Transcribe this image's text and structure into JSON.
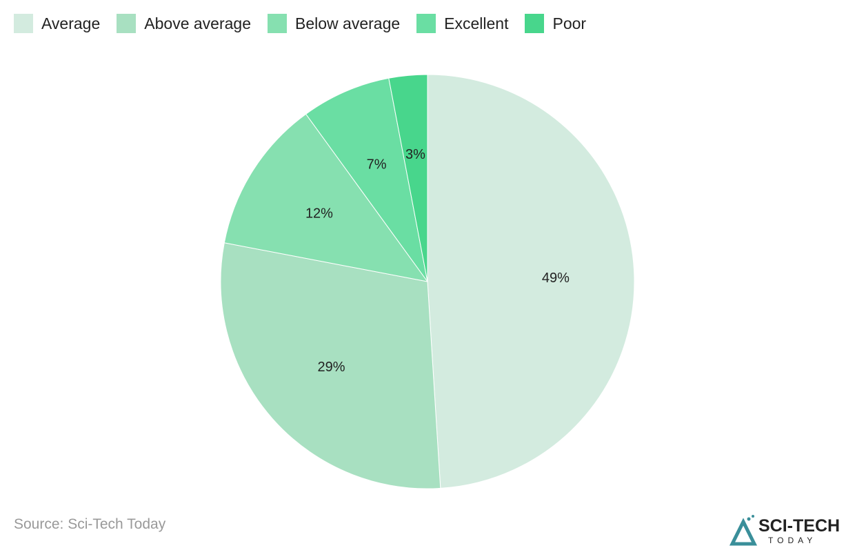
{
  "chart_data": {
    "type": "pie",
    "categories": [
      "Average",
      "Above average",
      "Below average",
      "Excellent",
      "Poor"
    ],
    "values": [
      49,
      29,
      12,
      7,
      3
    ],
    "labels": [
      "49%",
      "29%",
      "12%",
      "7%",
      "3%"
    ],
    "colors": [
      "#d3ebdf",
      "#a8e0c1",
      "#86e0b0",
      "#6adea3",
      "#48d68c"
    ],
    "legend_position": "top-left",
    "start_angle": "top, clockwise"
  },
  "source": "Source: Sci-Tech Today",
  "logo": {
    "line1": "SCI-TECH",
    "line2": "TODAY"
  }
}
